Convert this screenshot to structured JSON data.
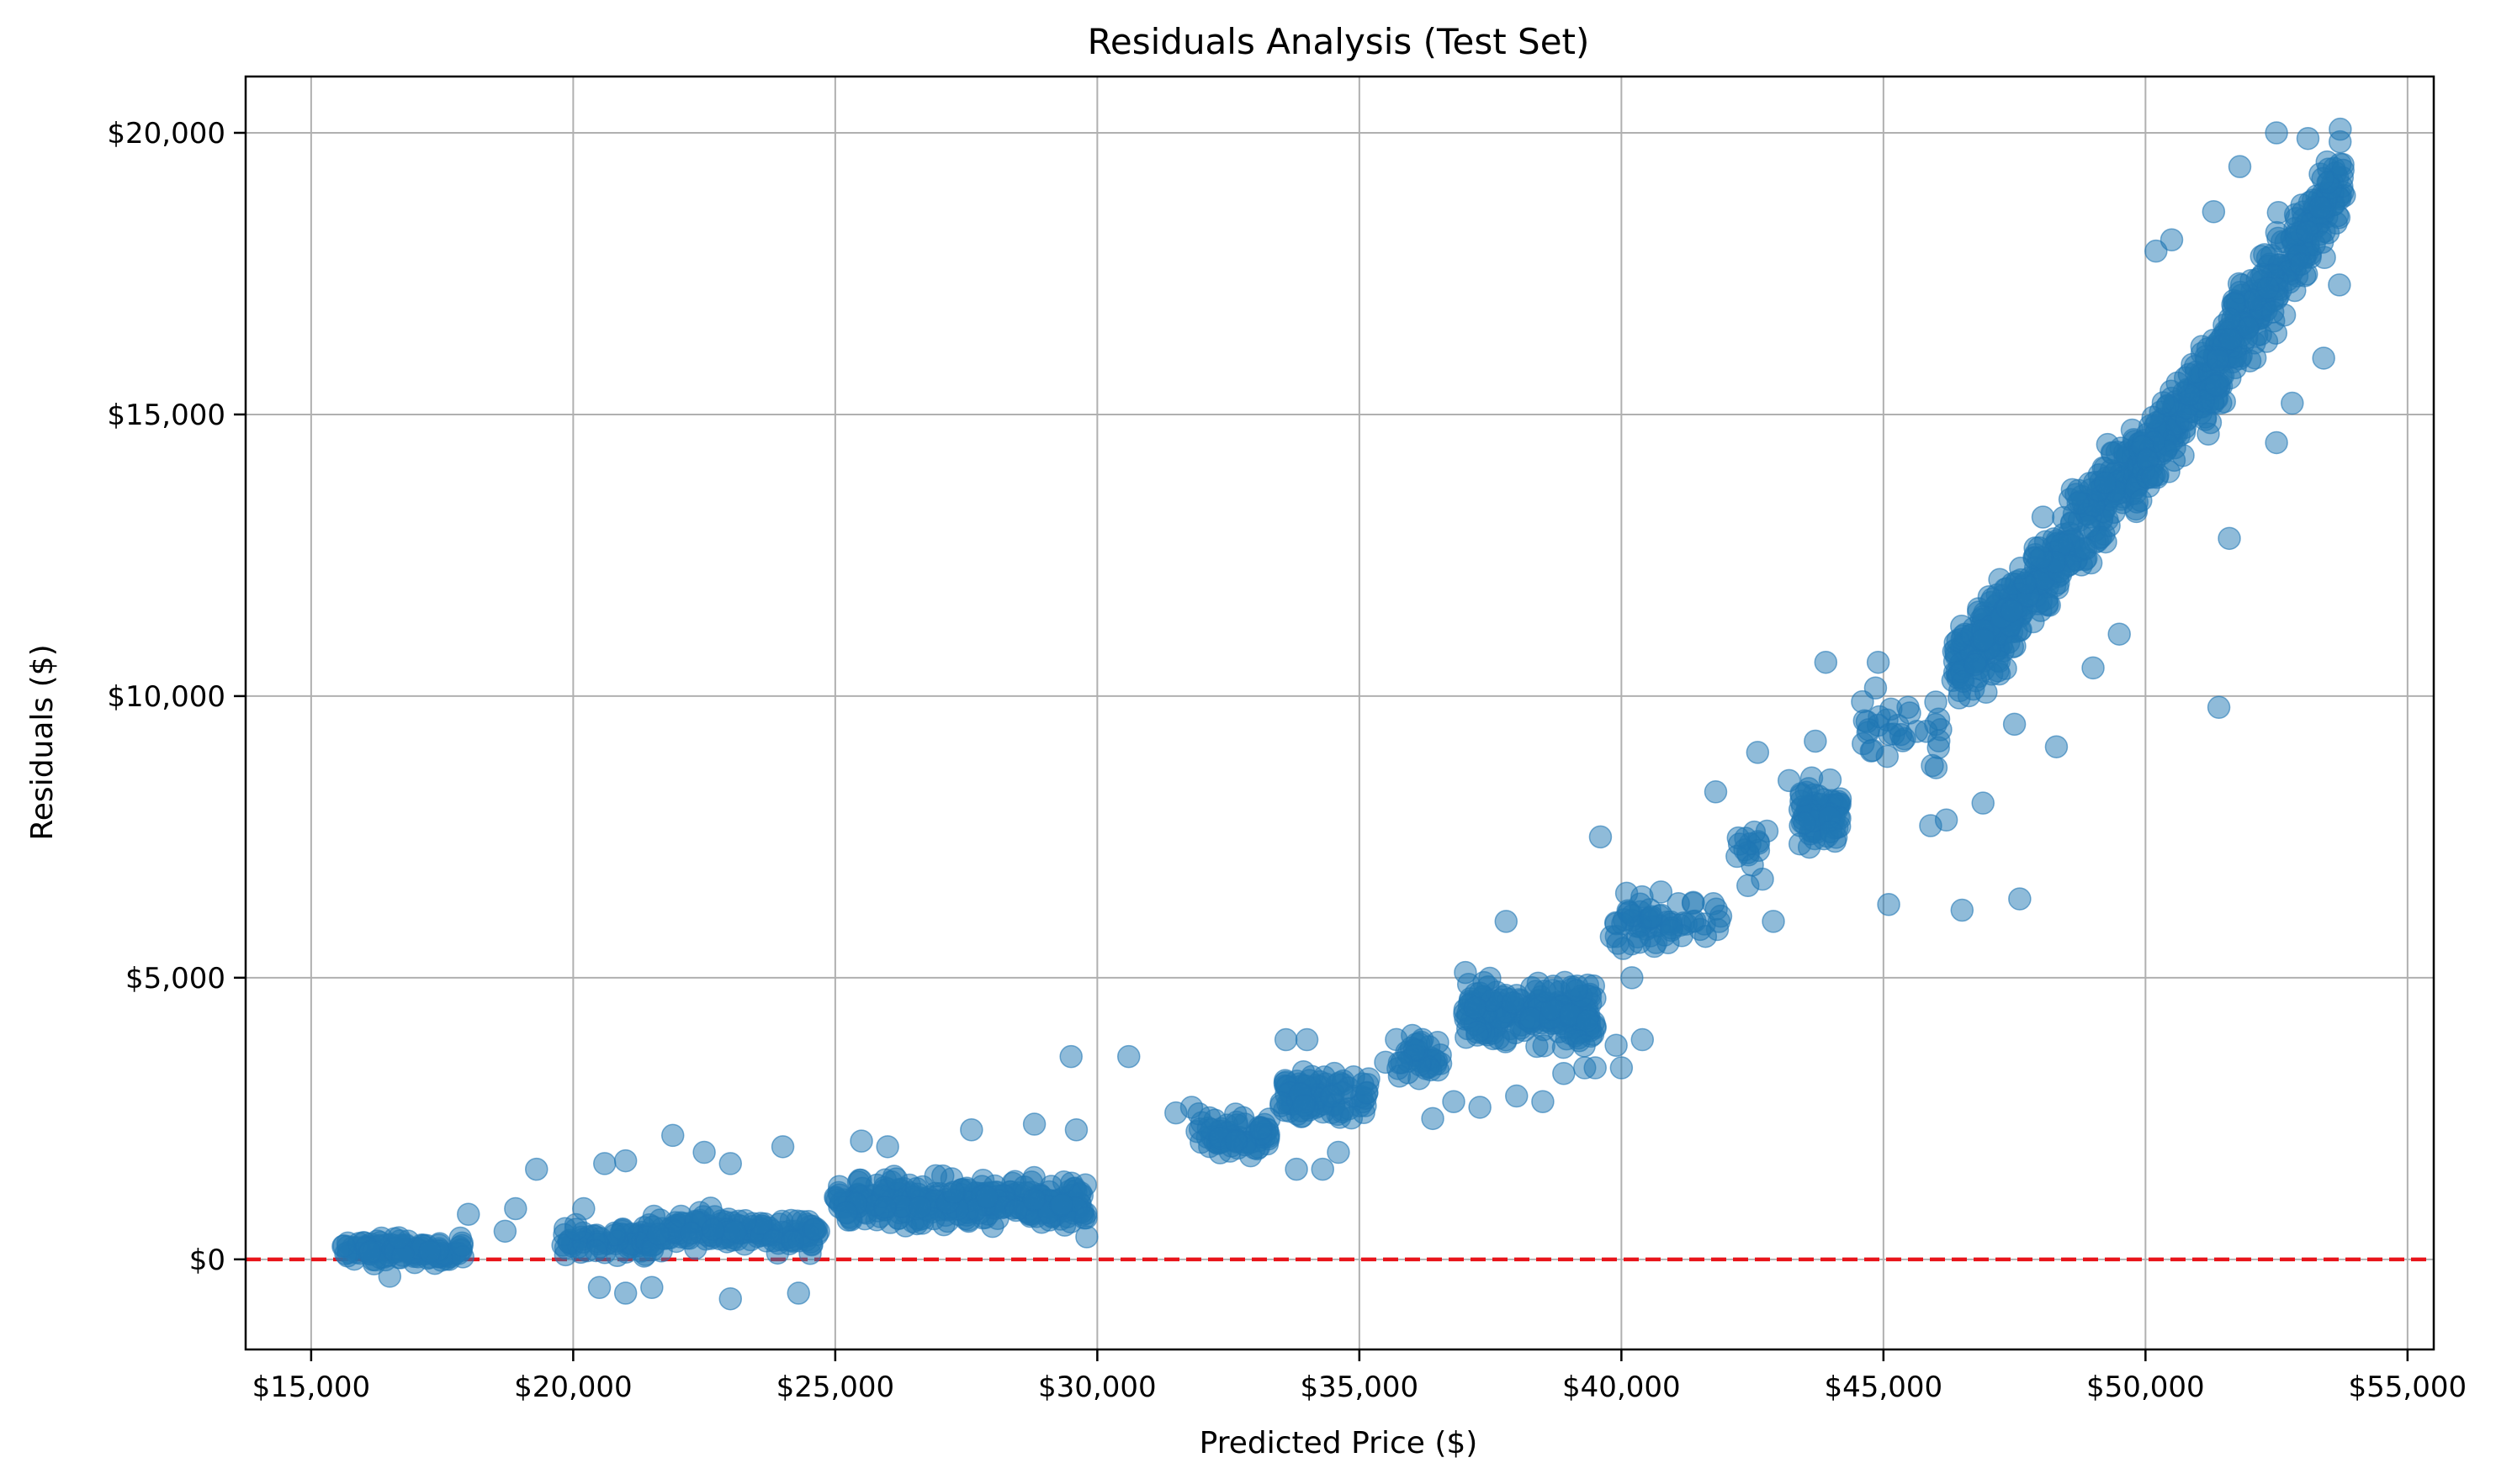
{
  "chart_data": {
    "type": "scatter",
    "title": "Residuals Analysis (Test Set)",
    "xlabel": "Predicted Price ($)",
    "ylabel": "Residuals ($)",
    "xlim": [
      13750,
      55500
    ],
    "ylim": [
      -1600,
      21000
    ],
    "x_ticks": [
      15000,
      20000,
      25000,
      30000,
      35000,
      40000,
      45000,
      50000,
      55000
    ],
    "x_tick_labels": [
      "$15,000",
      "$20,000",
      "$25,000",
      "$30,000",
      "$35,000",
      "$40,000",
      "$45,000",
      "$50,000",
      "$55,000"
    ],
    "y_ticks": [
      0,
      5000,
      10000,
      15000,
      20000
    ],
    "y_tick_labels": [
      "$0",
      "$5,000",
      "$10,000",
      "$15,000",
      "$20,000"
    ],
    "grid": true,
    "reference_line": {
      "y": 0,
      "color": "#e8141a",
      "style": "dashed"
    },
    "point_color": "#1f77b4",
    "clusters": [
      {
        "x_range": [
          15600,
          17900
        ],
        "y_center": 150,
        "spread": 180,
        "count": 120
      },
      {
        "x_range": [
          19800,
          21500
        ],
        "y_center": 350,
        "spread": 230,
        "count": 70
      },
      {
        "x_range": [
          21500,
          24700
        ],
        "y_center": 500,
        "spread": 280,
        "count": 150
      },
      {
        "x_range": [
          25000,
          29800
        ],
        "y_center": 1000,
        "spread": 350,
        "count": 320
      },
      {
        "x_range": [
          31900,
          33300
        ],
        "y_center": 2200,
        "spread": 280,
        "count": 70
      },
      {
        "x_range": [
          33500,
          35200
        ],
        "y_center": 2900,
        "spread": 350,
        "count": 90
      },
      {
        "x_range": [
          35700,
          36600
        ],
        "y_center": 3600,
        "spread": 300,
        "count": 40
      },
      {
        "x_range": [
          37000,
          39500
        ],
        "y_center": 4400,
        "spread": 550,
        "count": 200
      },
      {
        "x_range": [
          39800,
          41900
        ],
        "y_center": 6000,
        "spread": 450,
        "count": 60
      },
      {
        "x_range": [
          42200,
          42900
        ],
        "y_center": 7200,
        "spread": 500,
        "count": 15
      },
      {
        "x_range": [
          43400,
          44200
        ],
        "y_center": 7900,
        "spread": 400,
        "count": 80
      },
      {
        "x_range": [
          44600,
          46100
        ],
        "y_center": 9300,
        "spread": 600,
        "count": 30
      },
      {
        "x_range": [
          46300,
          49800
        ],
        "y_center_start": 10400,
        "y_center_end": 14200,
        "spread": 650,
        "count": 380
      },
      {
        "x_range": [
          49800,
          53800
        ],
        "y_center_start": 14000,
        "y_center_end": 19300,
        "spread": 700,
        "count": 420
      }
    ],
    "outliers": [
      [
        16500,
        -300
      ],
      [
        18000,
        800
      ],
      [
        18700,
        500
      ],
      [
        18900,
        900
      ],
      [
        19300,
        1600
      ],
      [
        20200,
        900
      ],
      [
        20600,
        1700
      ],
      [
        21000,
        1750
      ],
      [
        20500,
        -500
      ],
      [
        21000,
        -600
      ],
      [
        21500,
        -500
      ],
      [
        21900,
        2200
      ],
      [
        22500,
        1900
      ],
      [
        23000,
        1700
      ],
      [
        23000,
        -700
      ],
      [
        24000,
        2000
      ],
      [
        24300,
        -600
      ],
      [
        25500,
        2100
      ],
      [
        26000,
        2000
      ],
      [
        27600,
        2300
      ],
      [
        28800,
        2400
      ],
      [
        29600,
        2300
      ],
      [
        29500,
        3600
      ],
      [
        29800,
        400
      ],
      [
        30600,
        3600
      ],
      [
        31500,
        2600
      ],
      [
        31800,
        2700
      ],
      [
        33600,
        3900
      ],
      [
        34000,
        3900
      ],
      [
        33800,
        1600
      ],
      [
        34300,
        1600
      ],
      [
        34600,
        1900
      ],
      [
        35500,
        3500
      ],
      [
        36400,
        2500
      ],
      [
        36800,
        2800
      ],
      [
        37300,
        2700
      ],
      [
        37800,
        6000
      ],
      [
        38000,
        2900
      ],
      [
        38500,
        2800
      ],
      [
        38900,
        3300
      ],
      [
        39300,
        3400
      ],
      [
        39500,
        3400
      ],
      [
        39600,
        7500
      ],
      [
        39900,
        3800
      ],
      [
        40000,
        3400
      ],
      [
        40400,
        3900
      ],
      [
        40200,
        5000
      ],
      [
        40100,
        6500
      ],
      [
        41800,
        8300
      ],
      [
        42500,
        7000
      ],
      [
        42600,
        9000
      ],
      [
        42900,
        6000
      ],
      [
        43200,
        8500
      ],
      [
        43700,
        9200
      ],
      [
        43900,
        10600
      ],
      [
        44600,
        9900
      ],
      [
        44900,
        10600
      ],
      [
        45100,
        6300
      ],
      [
        45500,
        9700
      ],
      [
        45900,
        7700
      ],
      [
        46200,
        7800
      ],
      [
        46500,
        6200
      ],
      [
        46900,
        8100
      ],
      [
        47600,
        6400
      ],
      [
        47500,
        9500
      ],
      [
        48300,
        9100
      ],
      [
        49000,
        10500
      ],
      [
        49500,
        11100
      ],
      [
        50200,
        17900
      ],
      [
        50500,
        18100
      ],
      [
        51300,
        18600
      ],
      [
        51400,
        9800
      ],
      [
        51800,
        19400
      ],
      [
        52500,
        20000
      ],
      [
        53100,
        19900
      ],
      [
        53700,
        17300
      ],
      [
        53400,
        16000
      ],
      [
        52800,
        15200
      ],
      [
        52500,
        14500
      ],
      [
        51600,
        12800
      ]
    ]
  }
}
